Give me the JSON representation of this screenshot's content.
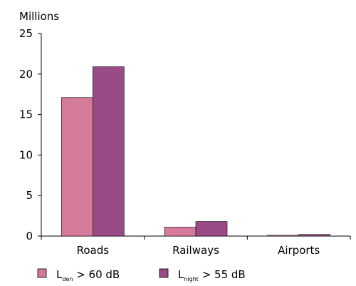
{
  "chart_data": {
    "type": "bar",
    "title": "",
    "ylabel": "Millions",
    "xlabel": "",
    "ylim": [
      0,
      25
    ],
    "yticks": [
      0,
      5,
      10,
      15,
      20,
      25
    ],
    "grid": false,
    "legend_position": "bottom",
    "categories": [
      "Roads",
      "Railways",
      "Airports"
    ],
    "series": [
      {
        "name_main": "L",
        "name_sub": "den",
        "name_rest": " > 60 dB",
        "color": "#d57a9a",
        "values": [
          17.1,
          1.1,
          0.1
        ]
      },
      {
        "name_main": "L",
        "name_sub": "night",
        "name_rest": " > 55 dB",
        "color": "#9a4a86",
        "values": [
          20.9,
          1.8,
          0.2
        ]
      }
    ]
  }
}
